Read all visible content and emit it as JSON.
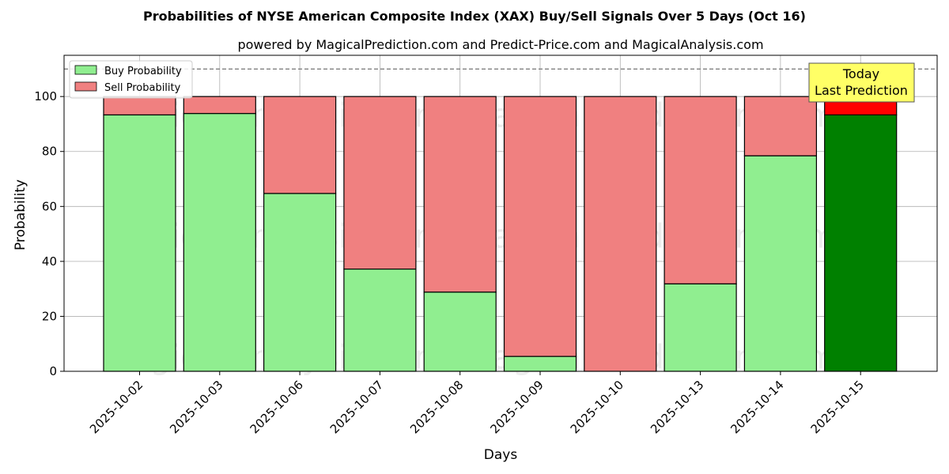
{
  "chart_data": {
    "type": "bar",
    "stacked": true,
    "title": "Probabilities of NYSE American Composite Index (XAX) Buy/Sell Signals Over 5 Days (Oct 16)",
    "subtitle": "powered by MagicalPrediction.com and Predict-Price.com and MagicalAnalysis.com",
    "xlabel": "Days",
    "ylabel": "Probability",
    "ylim": [
      0,
      115
    ],
    "yticks": [
      0,
      20,
      40,
      60,
      80,
      100
    ],
    "reference_line": 110,
    "grid": true,
    "legend_placement": "top-left",
    "categories": [
      "2025-10-02",
      "2025-10-03",
      "2025-10-06",
      "2025-10-07",
      "2025-10-08",
      "2025-10-09",
      "2025-10-10",
      "2025-10-13",
      "2025-10-14",
      "2025-10-15"
    ],
    "series": [
      {
        "name": "Buy Probability",
        "values": [
          93.3,
          93.8,
          64.7,
          37.2,
          28.8,
          5.4,
          0,
          31.8,
          78.4,
          93.3
        ]
      },
      {
        "name": "Sell Probability",
        "values": [
          6.7,
          6.2,
          35.3,
          62.8,
          71.2,
          94.6,
          100,
          68.2,
          21.6,
          6.7
        ]
      }
    ],
    "colors": {
      "buy": "#90ee90",
      "sell": "#f08080",
      "buy_highlight": "#008000",
      "sell_highlight": "#ff0000",
      "annotation_bg": "#ffff66"
    },
    "highlight_index": 9,
    "annotation": {
      "line1": "Today",
      "line2": "Last Prediction"
    },
    "watermarks": [
      "MagicalAnalysis.com",
      "MagicalPrediction.com"
    ]
  }
}
